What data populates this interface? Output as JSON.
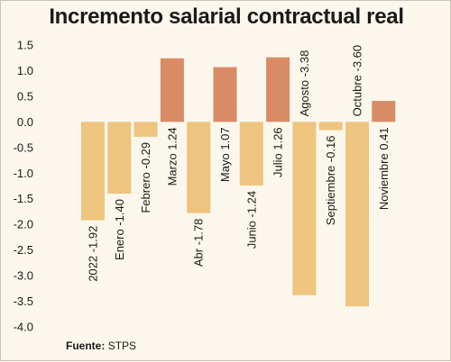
{
  "chart_data": {
    "type": "bar",
    "title": "Incremento salarial contractual real",
    "categories": [
      "2022",
      "Enero",
      "Febrero",
      "Marzo",
      "Abr",
      "Mayo",
      "Junio",
      "Julio",
      "Agosto",
      "Septiembre",
      "Octubre",
      "Noviembre"
    ],
    "values": [
      -1.92,
      -1.4,
      -0.29,
      1.24,
      -1.78,
      1.07,
      -1.24,
      1.26,
      -3.38,
      -0.16,
      -3.6,
      0.41
    ],
    "value_labels": [
      "-1.92",
      "-1.40",
      "-0.29",
      "1.24",
      "-1.78",
      "1.07",
      "-1.24",
      "1.26",
      "-3.38",
      "-0.16",
      "-3.60",
      "0.41"
    ],
    "y_ticks": [
      "1.5",
      "1.0",
      "0.5",
      "0.0",
      "-0.5",
      "-1.0",
      "-1.5",
      "-2.0",
      "-2.5",
      "-3.0",
      "-3.5",
      "-4.0"
    ],
    "ylim": [
      -4.0,
      1.5
    ],
    "grid": false,
    "colors": {
      "positive": "#d98b66",
      "negative": "#eec47f"
    }
  },
  "footer": {
    "source_label": "Fuente:",
    "source_value": "STPS"
  }
}
